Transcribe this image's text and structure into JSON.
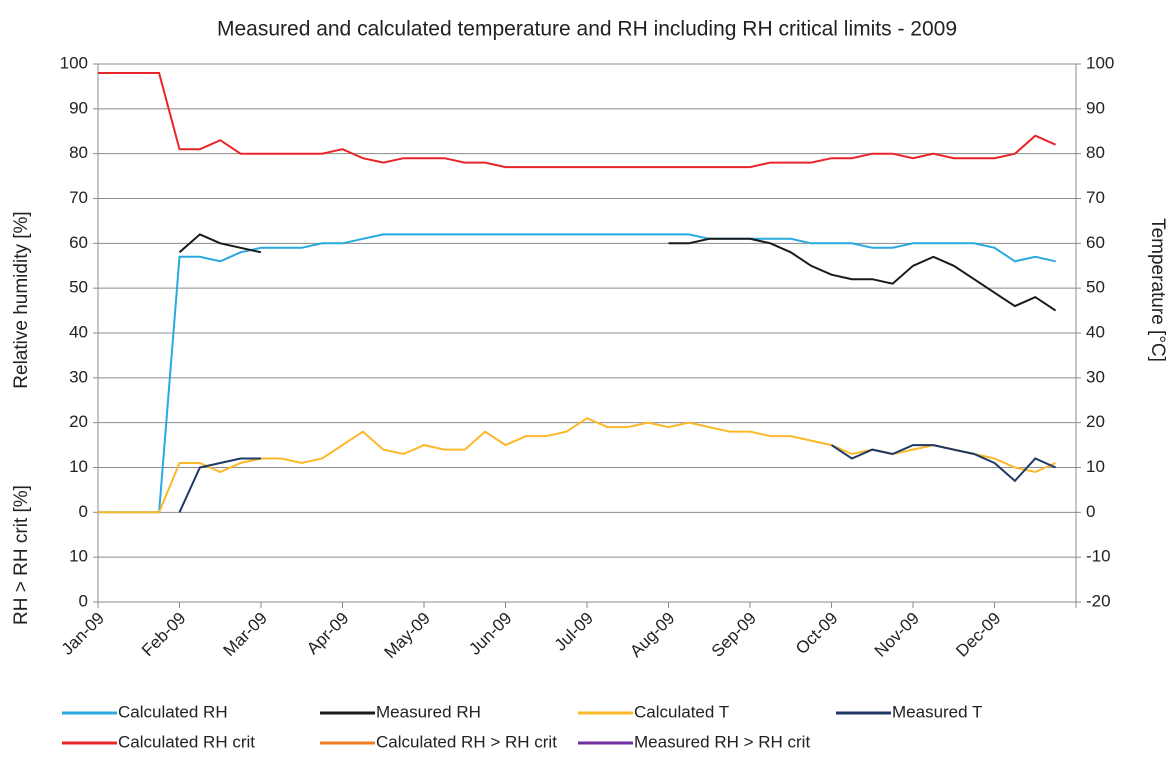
{
  "chart_data": {
    "type": "line",
    "title": "Measured and calculated temperature and RH including RH critical limits - 2009",
    "y_label": "Relative humidity [%]",
    "y_label_lower": "RH > RH crit [%]",
    "y2_label": "Temperature [°C]",
    "x": [
      "Jan-09",
      null,
      null,
      null,
      "Feb-09",
      null,
      null,
      null,
      "Mar-09",
      null,
      null,
      null,
      "Apr-09",
      null,
      null,
      null,
      "May-09",
      null,
      null,
      null,
      "Jun-09",
      null,
      null,
      null,
      "Jul-09",
      null,
      null,
      null,
      "Aug-09",
      null,
      null,
      null,
      "Sep-09",
      null,
      null,
      null,
      "Oct-09",
      null,
      null,
      null,
      "Nov-09",
      null,
      null,
      null,
      "Dec-09",
      null,
      null,
      null
    ],
    "ylim": [
      -20,
      100
    ],
    "yticks": [
      100,
      90,
      80,
      70,
      60,
      50,
      40,
      30,
      20,
      10,
      0,
      {
        "value": -10,
        "label": "10"
      },
      {
        "value": -20,
        "label": "0"
      }
    ],
    "y2lim": [
      -20,
      100
    ],
    "y2ticks": [
      100,
      90,
      80,
      70,
      60,
      50,
      40,
      30,
      20,
      10,
      0,
      -10,
      -20
    ],
    "grid": true,
    "legend": "bottom",
    "series": [
      {
        "name": "Calculated RH",
        "color": "#29a9e0",
        "values": [
          0,
          0,
          0,
          0,
          57,
          57,
          56,
          58,
          59,
          59,
          59,
          60,
          60,
          61,
          62,
          62,
          62,
          62,
          62,
          62,
          62,
          62,
          62,
          62,
          62,
          62,
          62,
          62,
          62,
          62,
          61,
          61,
          61,
          61,
          61,
          60,
          60,
          60,
          59,
          59,
          60,
          60,
          60,
          60,
          59,
          56,
          57,
          56
        ]
      },
      {
        "name": "Measured RH",
        "color": "#1a1a1a",
        "values": [
          null,
          null,
          null,
          null,
          58,
          62,
          60,
          59,
          58,
          null,
          null,
          null,
          null,
          null,
          null,
          null,
          null,
          null,
          null,
          null,
          null,
          null,
          null,
          null,
          null,
          null,
          null,
          null,
          60,
          60,
          61,
          61,
          61,
          60,
          58,
          55,
          53,
          52,
          52,
          51,
          55,
          57,
          55,
          52,
          49,
          46,
          48,
          45
        ]
      },
      {
        "name": "Calculated T",
        "color": "#fbb829",
        "axis": "y2",
        "values": [
          0,
          0,
          0,
          0,
          11,
          11,
          9,
          11,
          12,
          12,
          11,
          12,
          15,
          18,
          14,
          13,
          15,
          14,
          14,
          18,
          15,
          17,
          17,
          18,
          21,
          19,
          19,
          20,
          19,
          20,
          19,
          18,
          18,
          17,
          17,
          16,
          15,
          13,
          14,
          13,
          14,
          15,
          14,
          13,
          12,
          10,
          9,
          11
        ]
      },
      {
        "name": "Measured T",
        "color": "#1f3864",
        "axis": "y2",
        "values": [
          null,
          null,
          null,
          null,
          0,
          10,
          11,
          12,
          12,
          null,
          null,
          null,
          null,
          null,
          null,
          null,
          null,
          null,
          null,
          null,
          null,
          null,
          null,
          null,
          null,
          null,
          null,
          null,
          null,
          null,
          null,
          null,
          null,
          null,
          null,
          null,
          15,
          12,
          14,
          13,
          15,
          15,
          14,
          13,
          11,
          7,
          12,
          10
        ]
      },
      {
        "name": "Calculated RH crit",
        "color": "#e8262a",
        "values": [
          98,
          98,
          98,
          98,
          81,
          81,
          83,
          80,
          80,
          80,
          80,
          80,
          81,
          79,
          78,
          79,
          79,
          79,
          78,
          78,
          77,
          77,
          77,
          77,
          77,
          77,
          77,
          77,
          77,
          77,
          77,
          77,
          77,
          78,
          78,
          78,
          79,
          79,
          80,
          80,
          79,
          80,
          79,
          79,
          79,
          80,
          84,
          82
        ]
      },
      {
        "name": "Calculated RH > RH crit",
        "color": "#f07c22",
        "values": [
          null,
          null,
          null,
          null,
          null,
          null,
          null,
          null,
          null,
          null,
          null,
          null,
          null,
          null,
          null,
          null,
          null,
          null,
          null,
          null,
          null,
          null,
          null,
          null,
          null,
          null,
          null,
          null,
          null,
          null,
          null,
          null,
          null,
          null,
          null,
          null,
          null,
          null,
          null,
          null,
          null,
          null,
          null,
          null,
          null,
          null,
          null,
          null
        ]
      },
      {
        "name": "Measured RH > RH crit",
        "color": "#7030a0",
        "values": [
          null,
          null,
          null,
          null,
          null,
          null,
          null,
          null,
          null,
          null,
          null,
          null,
          null,
          null,
          null,
          null,
          null,
          null,
          null,
          null,
          null,
          null,
          null,
          null,
          null,
          null,
          null,
          null,
          null,
          null,
          null,
          null,
          null,
          null,
          null,
          null,
          null,
          null,
          null,
          null,
          null,
          null,
          null,
          null,
          null,
          null,
          null,
          null
        ]
      }
    ]
  }
}
